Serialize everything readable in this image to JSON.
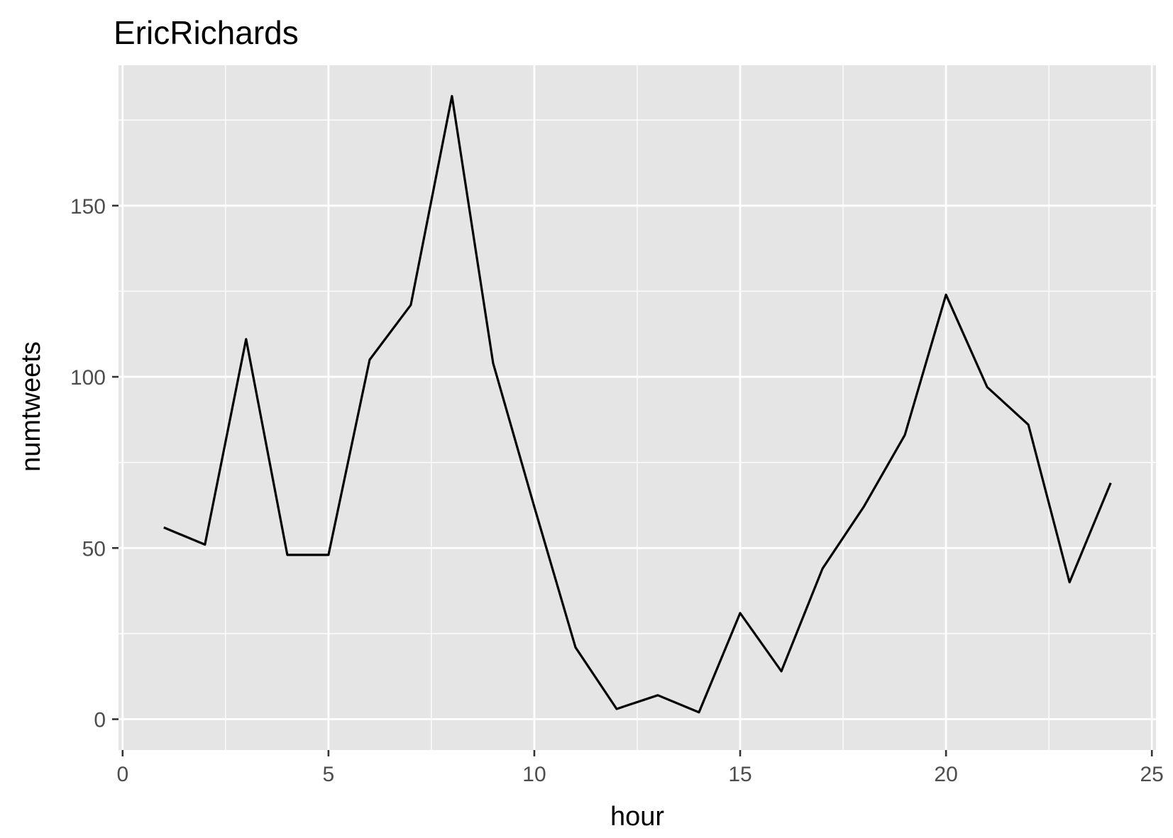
{
  "chart_data": {
    "type": "line",
    "title": "EricRichards",
    "xlabel": "hour",
    "ylabel": "numtweets",
    "xlim": [
      -0.1,
      25.1
    ],
    "ylim": [
      -9,
      191
    ],
    "x_ticks": [
      0,
      5,
      10,
      15,
      20,
      25
    ],
    "x_tick_labels": [
      "0",
      "5",
      "10",
      "15",
      "20",
      "25"
    ],
    "x_minor_ticks": [
      2.5,
      7.5,
      12.5,
      17.5,
      22.5
    ],
    "y_ticks": [
      0,
      50,
      100,
      150
    ],
    "y_tick_labels": [
      "0",
      "50",
      "100",
      "150"
    ],
    "y_minor_ticks": [
      25,
      75,
      125,
      175
    ],
    "grid": true,
    "colors": {
      "panel": "#e5e5e5",
      "grid": "#ffffff",
      "line": "#000000",
      "tick": "#333333"
    },
    "series": [
      {
        "x": [
          1,
          2,
          3,
          4,
          5,
          6,
          7,
          8,
          9,
          10,
          11,
          12,
          13,
          14,
          15,
          16,
          17,
          18,
          19,
          20,
          21,
          22,
          23,
          24
        ],
        "values": [
          56,
          51,
          111,
          48,
          48,
          105,
          121,
          182,
          104,
          62,
          21,
          3,
          7,
          2,
          31,
          14,
          44,
          62,
          83,
          124,
          97,
          86,
          40,
          69
        ]
      }
    ]
  }
}
